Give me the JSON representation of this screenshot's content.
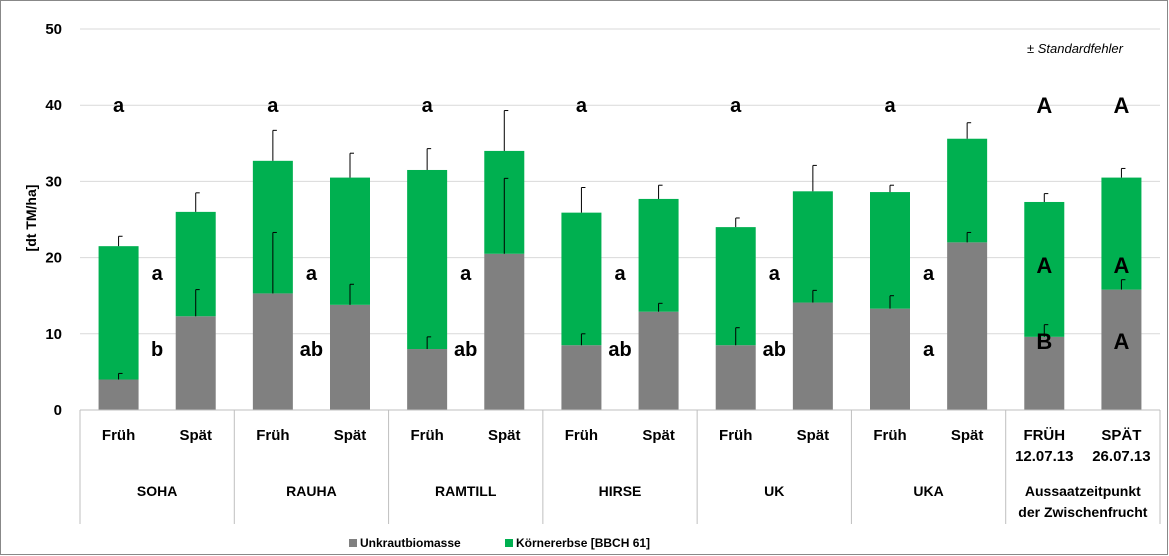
{
  "chart_data": {
    "type": "bar",
    "stacked": true,
    "ylabel": "[dt TM/ha]",
    "ylim": [
      0,
      50
    ],
    "yticks": [
      0,
      10,
      20,
      30,
      40,
      50
    ],
    "grid": true,
    "legend_position": "bottom",
    "annotation": "± Standardfehler",
    "colors": {
      "weed": "#808080",
      "pea": "#00B050"
    },
    "groups": [
      {
        "label": "SOHA",
        "label2": "",
        "categories": [
          "Früh",
          "Spät"
        ],
        "weed": [
          4.0,
          12.3
        ],
        "weed_err": [
          0.8,
          3.5
        ],
        "total": [
          21.5,
          26.0
        ],
        "total_err": [
          1.3,
          2.5
        ],
        "letters_top": [
          "a",
          ""
        ],
        "letters_pea": [
          "a",
          ""
        ],
        "letters_weed": [
          "b",
          ""
        ]
      },
      {
        "label": "RAUHA",
        "label2": "",
        "categories": [
          "Früh",
          "Spät"
        ],
        "weed": [
          15.3,
          13.8
        ],
        "weed_err": [
          8.0,
          2.7
        ],
        "total": [
          32.7,
          30.5
        ],
        "total_err": [
          4.0,
          3.2
        ],
        "letters_top": [
          "a",
          ""
        ],
        "letters_pea": [
          "a",
          ""
        ],
        "letters_weed": [
          "ab",
          ""
        ]
      },
      {
        "label": "RAMTILL",
        "label2": "",
        "categories": [
          "Früh",
          "Spät"
        ],
        "weed": [
          8.0,
          20.5
        ],
        "weed_err": [
          1.6,
          9.9
        ],
        "total": [
          31.5,
          34.0
        ],
        "total_err": [
          2.8,
          5.3
        ],
        "letters_top": [
          "a",
          ""
        ],
        "letters_pea": [
          "a",
          ""
        ],
        "letters_weed": [
          "ab",
          ""
        ]
      },
      {
        "label": "HIRSE",
        "label2": "",
        "categories": [
          "Früh",
          "Spät"
        ],
        "weed": [
          8.5,
          12.9
        ],
        "weed_err": [
          1.5,
          1.1
        ],
        "total": [
          25.9,
          27.7
        ],
        "total_err": [
          3.3,
          1.8
        ],
        "letters_top": [
          "a",
          ""
        ],
        "letters_pea": [
          "a",
          ""
        ],
        "letters_weed": [
          "ab",
          ""
        ]
      },
      {
        "label": "UK",
        "label2": "",
        "categories": [
          "Früh",
          "Spät"
        ],
        "weed": [
          8.5,
          14.1
        ],
        "weed_err": [
          2.3,
          1.6
        ],
        "total": [
          24.0,
          28.7
        ],
        "total_err": [
          1.2,
          3.4
        ],
        "letters_top": [
          "a",
          ""
        ],
        "letters_pea": [
          "a",
          ""
        ],
        "letters_weed": [
          "ab",
          ""
        ]
      },
      {
        "label": "UKA",
        "label2": "",
        "categories": [
          "Früh",
          "Spät"
        ],
        "weed": [
          13.3,
          22.0
        ],
        "weed_err": [
          1.7,
          1.3
        ],
        "total": [
          28.6,
          35.6
        ],
        "total_err": [
          0.9,
          2.1
        ],
        "letters_top": [
          "a",
          ""
        ],
        "letters_pea": [
          "a",
          ""
        ],
        "letters_weed": [
          "a",
          ""
        ]
      },
      {
        "label": "Aussaatzeitpunkt",
        "label2": "der Zwischenfrucht",
        "categories": [
          "FRÜH",
          "SPÄT"
        ],
        "categories2": [
          "12.07.13",
          "26.07.13"
        ],
        "weed": [
          9.6,
          15.8
        ],
        "weed_err": [
          1.6,
          1.3
        ],
        "total": [
          27.3,
          30.5
        ],
        "total_err": [
          1.1,
          1.2
        ],
        "letters_top": [
          "A",
          "A"
        ],
        "letters_pea": [
          "A",
          "A"
        ],
        "letters_weed": [
          "B",
          "A"
        ]
      }
    ],
    "legend": [
      {
        "key": "weed",
        "label": "Unkrautbiomasse"
      },
      {
        "key": "pea",
        "label": "Körnererbse [BBCH 61]"
      }
    ]
  }
}
